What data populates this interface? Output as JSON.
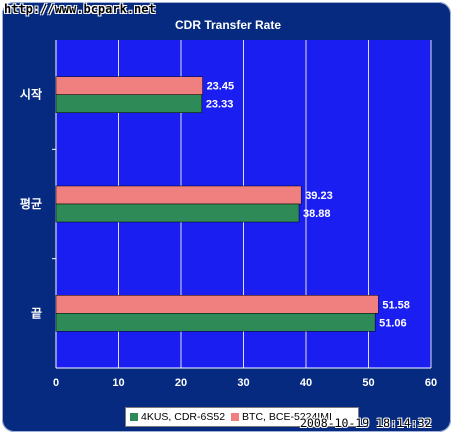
{
  "watermark": "http://www.bcpark.net",
  "timestamp": "2008-10-19 18:14:32",
  "colors": {
    "background": "#062a80",
    "plot": "#1a1ef0",
    "grid": "#ffffff",
    "series_a": "#2e8b57",
    "series_b": "#f08080"
  },
  "chart_data": {
    "type": "bar",
    "orientation": "horizontal",
    "title": "CDR Transfer Rate",
    "categories": [
      "시작",
      "평균",
      "끝"
    ],
    "series": [
      {
        "name": "BTC, BCE-5224IMI",
        "values": [
          23.45,
          39.23,
          51.58
        ]
      },
      {
        "name": "4KUS, CDR-6S52",
        "values": [
          23.33,
          38.88,
          51.06
        ]
      }
    ],
    "xlim": [
      0,
      60
    ],
    "xticks": [
      0,
      10,
      20,
      30,
      40,
      50,
      60
    ],
    "xlabel": "",
    "ylabel": "",
    "grid": true,
    "legend_position": "bottom"
  }
}
